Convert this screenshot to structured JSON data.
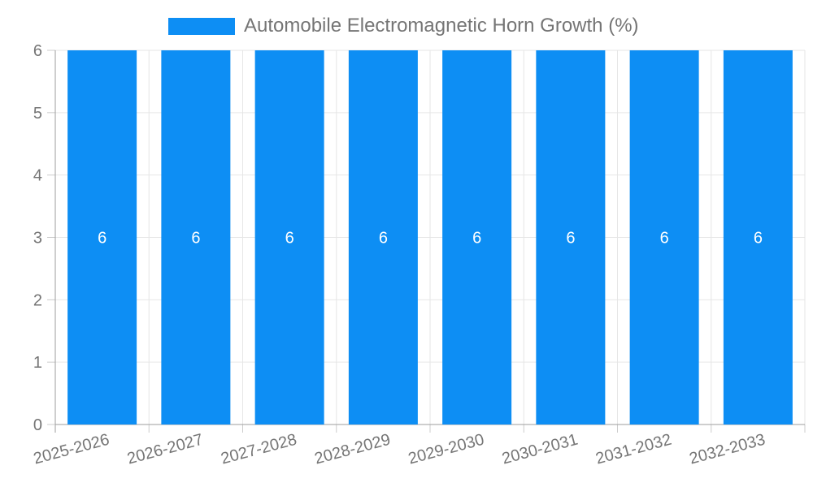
{
  "legend": {
    "label": "Automobile Electromagnetic Horn Growth (%)"
  },
  "colors": {
    "bar": "#0d8ef4",
    "bar_label": "#ffffff",
    "text": "#757575",
    "axis": "#9e9e9e",
    "tick": "#cccccc",
    "grid": "#e6e6e6",
    "background": "#ffffff"
  },
  "chart_data": {
    "type": "bar",
    "title": "",
    "categories": [
      "2025-2026",
      "2026-2027",
      "2027-2028",
      "2028-2029",
      "2029-2030",
      "2030-2031",
      "2031-2032",
      "2032-2033"
    ],
    "series": [
      {
        "name": "Automobile Electromagnetic Horn Growth (%)",
        "values": [
          6,
          6,
          6,
          6,
          6,
          6,
          6,
          6
        ]
      }
    ],
    "bar_value_labels": [
      "6",
      "6",
      "6",
      "6",
      "6",
      "6",
      "6",
      "6"
    ],
    "xlabel": "",
    "ylabel": "",
    "ylim": [
      0,
      6
    ],
    "yticks": [
      0,
      1,
      2,
      3,
      4,
      5,
      6
    ],
    "grid": true,
    "legend_position": "top",
    "x_label_rotation_deg": -15
  }
}
